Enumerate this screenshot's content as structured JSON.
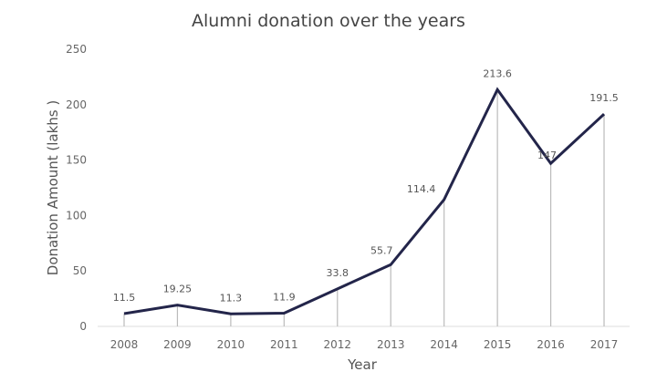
{
  "chart_data": {
    "type": "line",
    "title": "Alumni donation over the years",
    "xlabel": "Year",
    "ylabel": "Donation Amount (lakhs )",
    "categories": [
      "2008",
      "2009",
      "2010",
      "2011",
      "2012",
      "2013",
      "2014",
      "2015",
      "2016",
      "2017"
    ],
    "series": [
      {
        "values": [
          11.5,
          19.25,
          11.3,
          11.9,
          33.8,
          55.7,
          114.4,
          213.6,
          147,
          191.5
        ]
      }
    ],
    "data_labels": [
      "11.5",
      "19.25",
      "11.3",
      "11.9",
      "33.8",
      "55.7",
      "114.4",
      "213.6",
      "147",
      "191.5"
    ],
    "ylim": [
      0,
      250
    ],
    "yticks": [
      "0",
      "50",
      "100",
      "150",
      "200",
      "250"
    ],
    "grid": false,
    "drop_lines": true,
    "colors": {
      "line": "#23254a",
      "drop_line": "#bbbbbb",
      "axis": "#dddddd"
    }
  }
}
